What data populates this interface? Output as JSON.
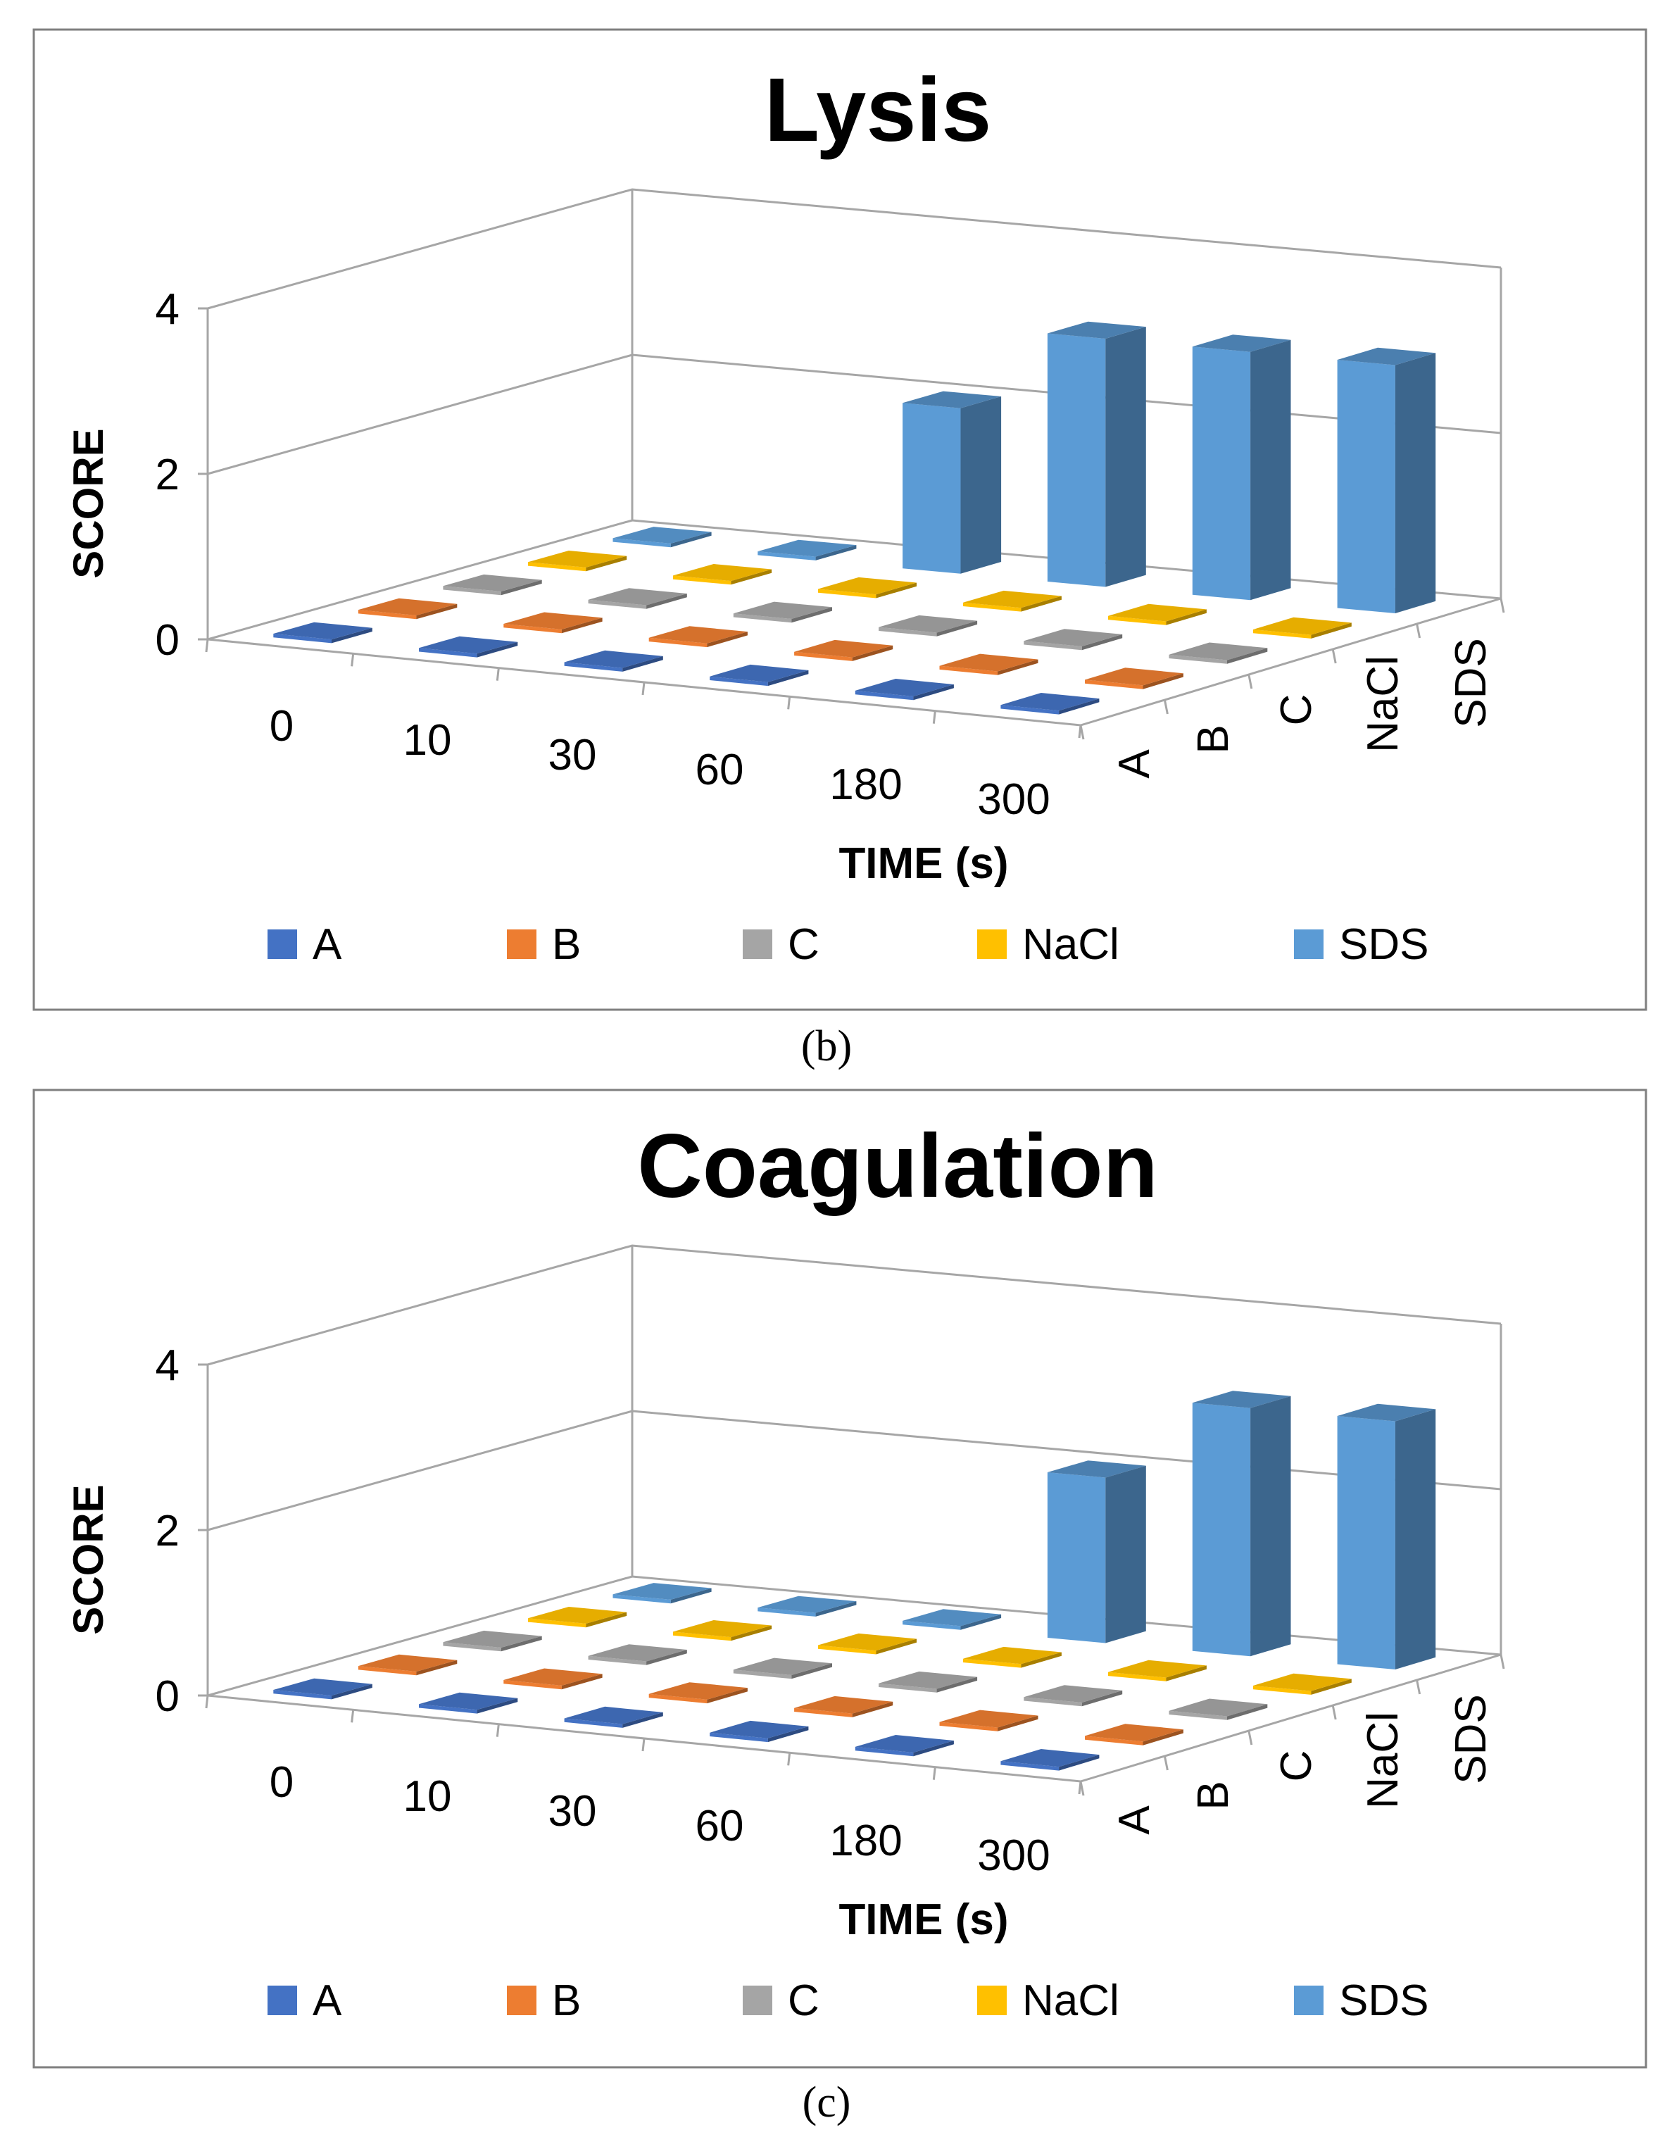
{
  "colors": {
    "A": "#4472C4",
    "B": "#ED7D31",
    "C": "#A5A5A5",
    "NaCl": "#FFC000",
    "SDS": "#5B9BD5",
    "grid": "#A6A6A6",
    "frame": "#7F7F7F",
    "text": "#000000"
  },
  "chart_data": [
    {
      "type": "bar",
      "subtype": "3d-column",
      "title": "Lysis",
      "xlabel": "TIME (s)",
      "ylabel": "SCORE",
      "zlabel": "",
      "categories": [
        "0",
        "10",
        "30",
        "60",
        "180",
        "300"
      ],
      "ylim": [
        0,
        4
      ],
      "yticks": [
        0,
        2,
        4
      ],
      "legend_position": "bottom",
      "series": [
        {
          "name": "A",
          "values": [
            0,
            0,
            0,
            0,
            0,
            0
          ]
        },
        {
          "name": "B",
          "values": [
            0,
            0,
            0,
            0,
            0,
            0
          ]
        },
        {
          "name": "C",
          "values": [
            0,
            0,
            0,
            0,
            0,
            0
          ]
        },
        {
          "name": "NaCl",
          "values": [
            0,
            0,
            0,
            0,
            0,
            0
          ]
        },
        {
          "name": "SDS",
          "values": [
            0,
            0,
            2,
            3,
            3,
            3
          ]
        }
      ],
      "caption": "(b)"
    },
    {
      "type": "bar",
      "subtype": "3d-column",
      "title": "Coagulation",
      "xlabel": "TIME (s)",
      "ylabel": "SCORE",
      "zlabel": "",
      "categories": [
        "0",
        "10",
        "30",
        "60",
        "180",
        "300"
      ],
      "ylim": [
        0,
        4
      ],
      "yticks": [
        0,
        2,
        4
      ],
      "legend_position": "bottom",
      "series": [
        {
          "name": "A",
          "values": [
            0,
            0,
            0,
            0,
            0,
            0
          ]
        },
        {
          "name": "B",
          "values": [
            0,
            0,
            0,
            0,
            0,
            0
          ]
        },
        {
          "name": "C",
          "values": [
            0,
            0,
            0,
            0,
            0,
            0
          ]
        },
        {
          "name": "NaCl",
          "values": [
            0,
            0,
            0,
            0,
            0,
            0
          ]
        },
        {
          "name": "SDS",
          "values": [
            0,
            0,
            0,
            2,
            3,
            3
          ]
        }
      ],
      "caption": "(c)"
    }
  ]
}
